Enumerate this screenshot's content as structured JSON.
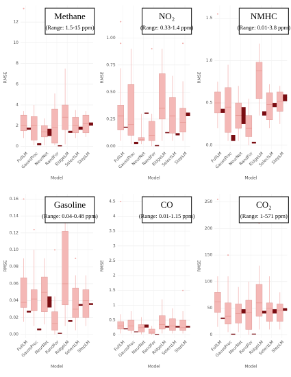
{
  "chart_data": [
    {
      "type": "box",
      "title": "Methane",
      "subtitle": "(Range: 1.5-15 ppm)",
      "xlabel": "Model",
      "ylabel": "RMSE",
      "categories": [
        "FullLM",
        "GaussProc",
        "NeurNet",
        "RandFor",
        "RidgeLM",
        "SelectLM",
        "StepLM"
      ],
      "ylim": [
        -0.3,
        13.6
      ],
      "yticks": [
        0,
        2,
        4,
        6,
        8,
        10,
        12
      ],
      "series": [
        {
          "color": "#f4b8b6",
          "values": [
            [
              0.8,
              1.5,
              2.0,
              3.0,
              3.4
            ],
            [
              0.1,
              0.6,
              2.0,
              2.9,
              4.0
            ],
            [
              0.1,
              0.9,
              1.4,
              2.0,
              2.7
            ],
            [
              0.1,
              0.3,
              1.8,
              3.6,
              5.1
            ],
            [
              0.2,
              1.6,
              2.8,
              4.0,
              7.5
            ],
            [
              0.8,
              1.3,
              2.0,
              2.8,
              3.5
            ],
            [
              0.9,
              1.3,
              2.2,
              3.0,
              3.4
            ]
          ]
        },
        {
          "color": "#7a0d12",
          "values": [
            [
              1.6,
              1.7,
              1.8
            ],
            [
              0.1,
              0.2,
              0.3
            ],
            [
              1.0,
              1.3,
              1.7
            ],
            [
              0.0,
              0.05,
              0.1
            ],
            [
              1.3,
              1.4,
              1.5
            ],
            [
              1.6,
              1.75,
              1.9
            ],
            [
              2.0,
              2.15,
              2.3
            ]
          ]
        }
      ],
      "outliers": [
        [
          13.3
        ],
        [],
        [],
        [],
        [],
        [],
        []
      ]
    },
    {
      "type": "box",
      "title": "NO₂",
      "subtitle": "(Range: 0.33-1.4 ppm)",
      "xlabel": "Model",
      "ylabel": "RMSE",
      "categories": [
        "FullLM",
        "GaussProc",
        "NeurNet",
        "RandFor",
        "RidgeLM",
        "SelectLM",
        "StepLM"
      ],
      "ylim": [
        -0.03,
        1.3
      ],
      "yticks": [
        {
          "value": 0,
          "label": "0.00"
        },
        0.25,
        {
          "value": 0.5,
          "label": "0.50"
        },
        0.75,
        {
          "value": 1,
          "label": "1.00"
        }
      ],
      "series": [
        {
          "color": "#f4b8b6",
          "values": [
            [
              0.05,
              0.15,
              0.28,
              0.38,
              0.72
            ],
            [
              0.02,
              0.1,
              0.2,
              0.57,
              0.9
            ],
            [
              0.02,
              0.05,
              0.06,
              0.08,
              0.3
            ],
            [
              0.0,
              0.05,
              0.1,
              0.23,
              0.3
            ],
            [
              0.05,
              0.25,
              0.35,
              0.67,
              0.9
            ],
            [
              0.05,
              0.12,
              0.28,
              0.45,
              0.65
            ],
            [
              0.05,
              0.13,
              0.22,
              0.35,
              0.6
            ]
          ]
        },
        {
          "color": "#7a0d12",
          "values": [
            [
              0.17,
              0.175,
              0.18
            ],
            [
              0.02,
              0.03,
              0.04
            ],
            [
              0.3,
              0.305,
              0.31
            ],
            [
              0.0,
              0.005,
              0.01
            ],
            [
              0.12,
              0.125,
              0.13
            ],
            [
              0.1,
              0.11,
              0.12
            ],
            [
              0.28,
              0.295,
              0.31
            ]
          ]
        }
      ],
      "outliers": [
        [
          1.15,
          0.95
        ],
        [],
        [],
        [
          0.9
        ],
        [],
        [],
        [
          0.95
        ]
      ]
    },
    {
      "type": "box",
      "title": "NMHC",
      "subtitle": "(Range: 0.01-3.8 ppm)",
      "xlabel": "Model",
      "ylabel": "RMSE",
      "categories": [
        "FullLM",
        "GaussProc",
        "NeurNet",
        "RandFor",
        "RidgeLM",
        "SelectLM",
        "StepLM"
      ],
      "ylim": [
        -0.05,
        1.65
      ],
      "yticks": [
        {
          "value": 0,
          "label": "0.0"
        },
        0.5,
        {
          "value": 1,
          "label": "1.0"
        },
        1.5
      ],
      "series": [
        {
          "color": "#f4b8b6",
          "values": [
            [
              0.2,
              0.38,
              0.5,
              0.63,
              0.75
            ],
            [
              0.05,
              0.15,
              0.45,
              0.68,
              0.95
            ],
            [
              0.05,
              0.2,
              0.35,
              0.5,
              0.7
            ],
            [
              0.0,
              0.1,
              0.2,
              0.35,
              0.55
            ],
            [
              0.35,
              0.55,
              0.88,
              0.98,
              1.2
            ],
            [
              0.2,
              0.3,
              0.48,
              0.62,
              0.72
            ],
            [
              0.25,
              0.4,
              0.52,
              0.63,
              0.7
            ]
          ]
        },
        {
          "color": "#7a0d12",
          "values": [
            [
              0.38,
              0.4,
              0.43
            ],
            [
              0.05,
              0.08,
              0.12
            ],
            [
              0.25,
              0.35,
              0.45
            ],
            [
              0.02,
              0.03,
              0.04
            ],
            [
              0.35,
              0.37,
              0.4
            ],
            [
              0.45,
              0.47,
              0.5
            ],
            [
              0.52,
              0.56,
              0.6
            ]
          ]
        }
      ],
      "outliers": [
        [
          1.55
        ],
        [],
        [],
        [],
        [],
        [],
        []
      ]
    },
    {
      "type": "box",
      "title": "Gasoline",
      "subtitle": "(Range: 0.04-0.48 ppm)",
      "xlabel": "Model",
      "ylabel": "RMSE",
      "categories": [
        "FullLM",
        "GaussProc",
        "NeurNet",
        "RandFor",
        "RidgeLM",
        "SelectLM",
        "StepLM"
      ],
      "ylim": [
        -0.004,
        0.166
      ],
      "yticks": [
        {
          "value": 0,
          "label": "0.00"
        },
        0.02,
        0.04,
        0.06,
        0.08,
        {
          "value": 0.1,
          "label": "0.10"
        },
        0.12,
        0.14,
        0.16
      ],
      "series": [
        {
          "color": "#f4b8b6",
          "values": [
            [
              0.015,
              0.032,
              0.038,
              0.067,
              0.09
            ],
            [
              0.01,
              0.028,
              0.042,
              0.053,
              0.1
            ],
            [
              0.012,
              0.027,
              0.05,
              0.068,
              0.09
            ],
            [
              0.0,
              0.005,
              0.013,
              0.027,
              0.045
            ],
            [
              0.01,
              0.035,
              0.06,
              0.122,
              0.15
            ],
            [
              0.005,
              0.02,
              0.03,
              0.055,
              0.07
            ],
            [
              0.01,
              0.02,
              0.04,
              0.053,
              0.07
            ]
          ]
        },
        {
          "color": "#7a0d12",
          "values": [
            [
              0.026,
              0.027,
              0.028
            ],
            [
              0.005,
              0.006,
              0.007
            ],
            [
              0.032,
              0.04,
              0.045
            ],
            [
              0.001,
              0.0015,
              0.002
            ],
            [
              0.015,
              0.016,
              0.017
            ],
            [
              0.034,
              0.035,
              0.036
            ],
            [
              0.035,
              0.036,
              0.037
            ]
          ]
        }
      ],
      "outliers": [
        [
          0.16
        ],
        [
          0.124
        ],
        [],
        [
          0.1
        ],
        [],
        [
          0.09
        ],
        []
      ]
    },
    {
      "type": "box",
      "title": "CO",
      "subtitle": "(Range: 0.01-1.15 ppm)",
      "xlabel": "Model",
      "ylabel": "RMSE",
      "categories": [
        "FullLM",
        "GaussProc",
        "NeurNet",
        "RandFor",
        "RidgeLM",
        "SelectLM",
        "StepLM"
      ],
      "ylim": [
        -0.1,
        4.75
      ],
      "yticks": [
        0,
        0.5,
        1,
        1.5,
        2,
        2.5,
        3,
        3.5,
        4,
        4.5
      ],
      "series": [
        {
          "color": "#f4b8b6",
          "values": [
            [
              0.05,
              0.2,
              0.3,
              0.45,
              0.7
            ],
            [
              0.05,
              0.15,
              0.3,
              0.5,
              0.8
            ],
            [
              0.02,
              0.1,
              0.25,
              0.35,
              0.6
            ],
            [
              0.0,
              0.05,
              0.1,
              0.2,
              0.3
            ],
            [
              0.05,
              0.2,
              0.35,
              0.65,
              1.2
            ],
            [
              0.05,
              0.15,
              0.3,
              0.55,
              0.9
            ],
            [
              0.05,
              0.15,
              0.25,
              0.5,
              0.8
            ]
          ]
        },
        {
          "color": "#7a0d12",
          "values": [
            [
              0.2,
              0.21,
              0.22
            ],
            [
              0.1,
              0.11,
              0.12
            ],
            [
              0.25,
              0.3,
              0.35
            ],
            [
              0.01,
              0.02,
              0.03
            ],
            [
              0.25,
              0.27,
              0.3
            ],
            [
              0.25,
              0.27,
              0.3
            ],
            [
              0.25,
              0.27,
              0.3
            ]
          ]
        }
      ],
      "outliers": [
        [
          4.5
        ],
        [],
        [],
        [],
        [
          4.6
        ],
        [],
        [
          1.5
        ]
      ]
    },
    {
      "type": "box",
      "title": "CO₂",
      "subtitle": "(Range: 1-571 ppm)",
      "xlabel": "Model",
      "ylabel": "RMSE",
      "categories": [
        "FullLM",
        "GaussProc",
        "NeurNet",
        "RandFor",
        "RidgeLM",
        "SelectLM",
        "StepLM"
      ],
      "ylim": [
        -6,
        265
      ],
      "yticks": [
        0,
        50,
        100,
        150,
        200,
        250
      ],
      "series": [
        {
          "color": "#f4b8b6",
          "values": [
            [
              15,
              42,
              62,
              80,
              110
            ],
            [
              5,
              20,
              35,
              60,
              110
            ],
            [
              5,
              22,
              40,
              58,
              90
            ],
            [
              0,
              10,
              42,
              65,
              100
            ],
            [
              10,
              35,
              60,
              95,
              130
            ],
            [
              10,
              25,
              50,
              60,
              110
            ],
            [
              10,
              25,
              45,
              58,
              80
            ]
          ]
        },
        {
          "color": "#7a0d12",
          "values": [
            [
              30,
              31,
              32
            ],
            [
              0,
              1,
              2
            ],
            [
              40,
              44,
              48
            ],
            [
              1,
              1.5,
              2
            ],
            [
              40,
              42,
              45
            ],
            [
              40,
              44,
              48
            ],
            [
              45,
              47,
              50
            ]
          ]
        }
      ],
      "outliers": [
        [
          255
        ],
        [
          150
        ],
        [],
        [],
        [
          210
        ],
        [],
        []
      ]
    }
  ]
}
